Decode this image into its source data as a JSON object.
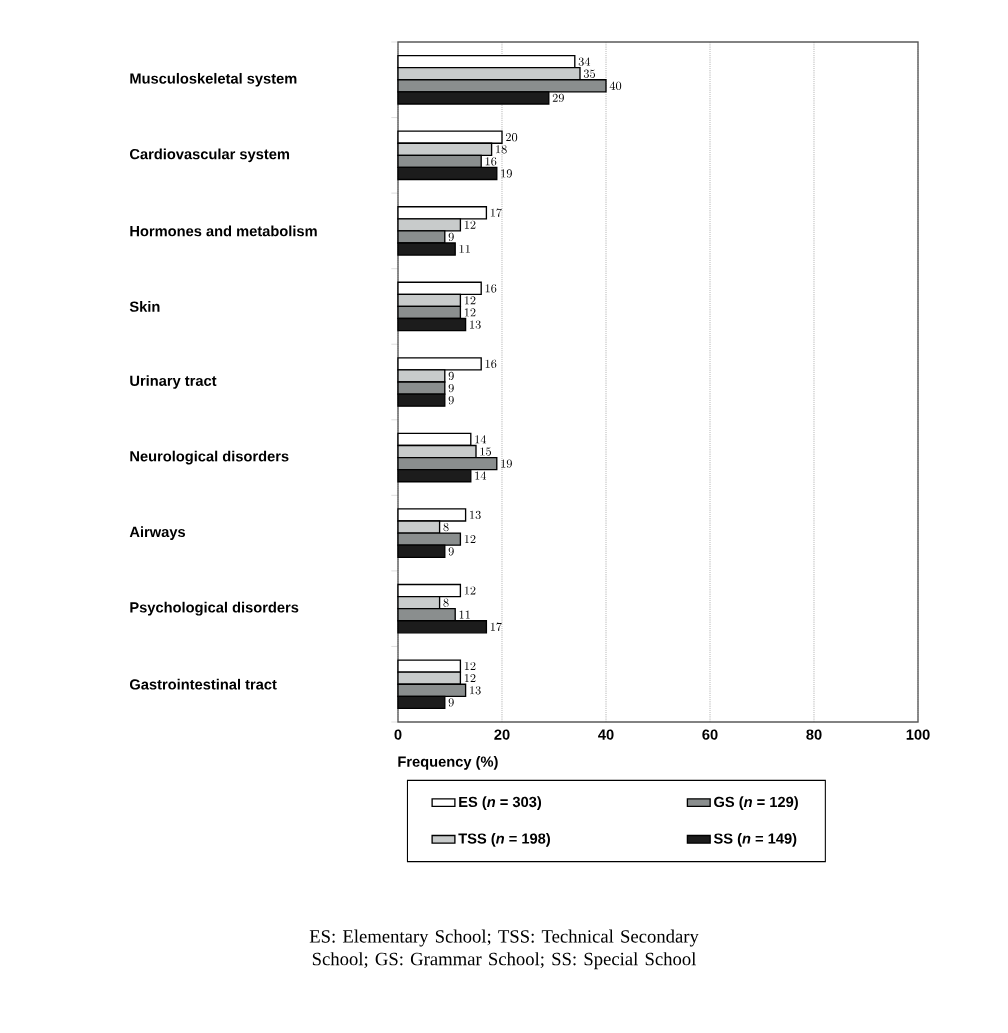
{
  "chart_data": {
    "type": "bar",
    "orientation": "horizontal",
    "xlabel": "Frequency (%)",
    "categories": [
      "Musculoskeletal system",
      "Cardiovascular system",
      "Hormones and metabolism",
      "Skin",
      "Urinary tract",
      "Neurological disorders",
      "Airways",
      "Psychological disorders",
      "Gastrointestinal tract"
    ],
    "series": [
      {
        "name": "ES (*n* = 303)",
        "color": "#ffffff",
        "values": [
          34,
          20,
          17,
          16,
          16,
          14,
          13,
          12,
          12
        ]
      },
      {
        "name": "TSS (*n* = 198)",
        "color": "#c8cbcb",
        "values": [
          35,
          18,
          12,
          12,
          9,
          15,
          8,
          8,
          12
        ]
      },
      {
        "name": "GS (*n* = 129)",
        "color": "#8a8e8e",
        "values": [
          40,
          16,
          9,
          12,
          9,
          19,
          12,
          11,
          13
        ]
      },
      {
        "name": "SS (*n* = 149)",
        "color": "#1c1c1c",
        "values": [
          29,
          19,
          11,
          13,
          9,
          14,
          9,
          17,
          9
        ]
      }
    ],
    "xlim": [
      0,
      100
    ],
    "xticks": [
      0,
      20,
      40,
      60,
      80,
      100
    ],
    "grid": "x",
    "legend": "bottom",
    "data_labels": true,
    "annotations": [
      "ES: Elementary School; TSS: Technical Secondary School; GS: Grammar School; SS: Special School"
    ]
  }
}
